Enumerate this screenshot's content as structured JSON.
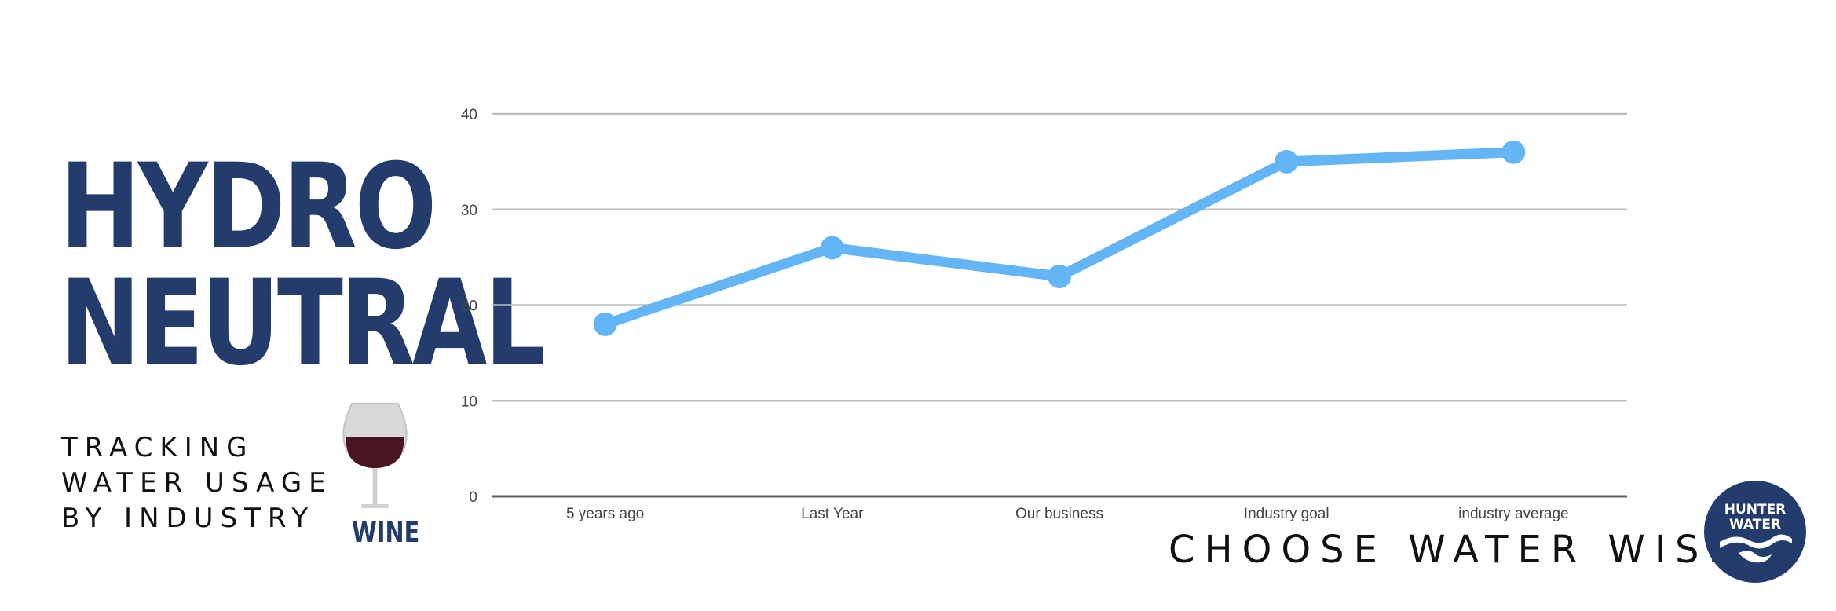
{
  "title": {
    "line1": "HYDRO",
    "line2": "NEUTRAL"
  },
  "subtitle": {
    "line1": "TRACKING",
    "line2": "WATER USAGE",
    "line3": "BY INDUSTRY"
  },
  "wine_label": "WINE",
  "tagline": "CHOOSE WATER WISE",
  "logo": {
    "line1": "HUNTER",
    "line2": "WATER"
  },
  "colors": {
    "brand_navy": "#233c6b",
    "line": "#64b5f6",
    "grid": "#bdbdbd",
    "axis": "#616161",
    "tick_text": "#444444"
  },
  "chart_data": {
    "type": "line",
    "categories": [
      "5 years ago",
      "Last Year",
      "Our business",
      "Industry goal",
      "industry average"
    ],
    "series": [
      {
        "values": [
          18,
          26,
          23,
          35,
          36
        ]
      }
    ],
    "yticks": [
      0,
      10,
      20,
      30,
      40
    ],
    "ylim": [
      0,
      40
    ],
    "grid": true,
    "xlabel": "",
    "ylabel": ""
  }
}
